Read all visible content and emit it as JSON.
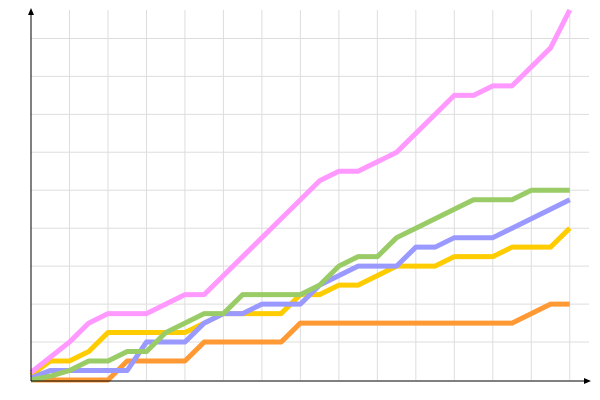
{
  "chart_data": {
    "type": "line",
    "x": [
      0,
      1,
      2,
      3,
      4,
      5,
      6,
      7,
      8,
      9,
      10,
      11,
      12,
      13,
      14,
      15,
      16,
      17,
      18,
      19,
      20,
      21,
      22,
      23,
      24,
      25,
      26,
      27,
      28
    ],
    "xlim": [
      0,
      29
    ],
    "ylim": [
      0,
      19.5
    ],
    "xticks": [
      2,
      4,
      6,
      8,
      10,
      12,
      14,
      16,
      18,
      20,
      22,
      24,
      26,
      28
    ],
    "yticks": [
      2,
      4,
      6,
      8,
      10,
      12,
      14,
      16,
      18
    ],
    "grid": true,
    "series": [
      {
        "color": "#ff9933",
        "values": [
          0,
          0,
          0,
          0,
          0,
          1,
          1,
          1,
          1,
          2,
          2,
          2,
          2,
          2,
          3,
          3,
          3,
          3,
          3,
          3,
          3,
          3,
          3,
          3,
          3,
          3,
          3.5,
          4,
          4
        ]
      },
      {
        "color": "#ffcc00",
        "values": [
          0.25,
          1,
          1,
          1.5,
          2.5,
          2.5,
          2.5,
          2.5,
          2.5,
          3,
          3.5,
          3.5,
          3.5,
          3.5,
          4.5,
          4.5,
          5,
          5,
          5.5,
          6,
          6,
          6,
          6.5,
          6.5,
          6.5,
          7,
          7,
          7,
          8
        ]
      },
      {
        "color": "#9999ff",
        "values": [
          0.1,
          0.5,
          0.5,
          0.5,
          0.5,
          0.5,
          2,
          2,
          2,
          3,
          3.5,
          3.5,
          4,
          4,
          4,
          5,
          5.5,
          6,
          6,
          6,
          7,
          7,
          7.5,
          7.5,
          7.5,
          8,
          8.5,
          9,
          9.5
        ]
      },
      {
        "color": "#99cc66",
        "values": [
          0,
          0.2,
          0.5,
          1,
          1,
          1.5,
          1.5,
          2.5,
          3,
          3.5,
          3.5,
          4.5,
          4.5,
          4.5,
          4.5,
          5,
          6,
          6.5,
          6.5,
          7.5,
          8,
          8.5,
          9,
          9.5,
          9.5,
          9.5,
          10,
          10,
          10
        ]
      },
      {
        "color": "#ff99ff",
        "values": [
          0.4,
          1.2,
          2,
          3,
          3.5,
          3.5,
          3.5,
          4,
          4.5,
          4.5,
          5.5,
          6.5,
          7.5,
          8.5,
          9.5,
          10.5,
          11,
          11,
          11.5,
          12,
          13,
          14,
          15,
          15,
          15.5,
          15.5,
          16.5,
          17.5,
          19.5
        ]
      }
    ]
  }
}
